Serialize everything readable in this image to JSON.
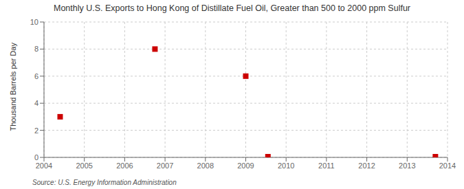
{
  "chart_data": {
    "type": "scatter",
    "title": "Monthly U.S. Exports to Hong Kong of Distillate Fuel Oil, Greater than 500 to 2000 ppm Sulfur",
    "y_label": "Thousand Barrels per Day",
    "annotations": [
      "Source: U.S. Energy Information Administration"
    ],
    "x": [
      2004.4,
      2006.75,
      2009.0,
      2009.55,
      2013.7
    ],
    "values": [
      3.0,
      8.0,
      6.0,
      0.05,
      0.05
    ],
    "color": "#cc0000",
    "marker": "square",
    "xlim": [
      2004,
      2014
    ],
    "ylim": [
      0,
      10
    ],
    "xticks": [
      2004,
      2005,
      2006,
      2007,
      2008,
      2009,
      2010,
      2011,
      2012,
      2013,
      2014
    ],
    "yticks": [
      0,
      2,
      4,
      6,
      8,
      10
    ],
    "grid": true
  }
}
